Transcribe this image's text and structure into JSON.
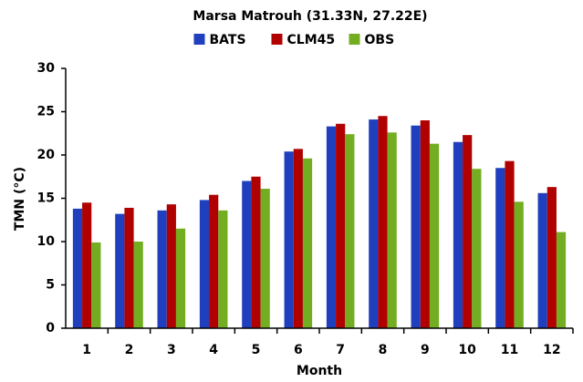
{
  "chart_data": {
    "type": "bar",
    "title": "Marsa Matrouh (31.33N, 27.22E)",
    "x_label": "Month",
    "y_label": "TMN (°C)",
    "categories": [
      "1",
      "2",
      "3",
      "4",
      "5",
      "6",
      "7",
      "8",
      "9",
      "10",
      "11",
      "12"
    ],
    "series": [
      {
        "name": "BATS",
        "color": "#1f3fbf",
        "values": [
          13.8,
          13.2,
          13.6,
          14.8,
          17.0,
          20.4,
          23.3,
          24.1,
          23.4,
          21.5,
          18.5,
          15.6
        ]
      },
      {
        "name": "CLM45",
        "color": "#b00000",
        "values": [
          14.5,
          13.9,
          14.3,
          15.4,
          17.5,
          20.7,
          23.6,
          24.5,
          24.0,
          22.3,
          19.3,
          16.3
        ]
      },
      {
        "name": "OBS",
        "color": "#73ad21",
        "values": [
          9.9,
          10.0,
          11.5,
          13.6,
          16.1,
          19.6,
          22.4,
          22.6,
          21.3,
          18.4,
          14.6,
          11.1
        ]
      }
    ],
    "ylim": [
      0,
      30
    ],
    "yticks": [
      0,
      5,
      10,
      15,
      20,
      25,
      30
    ],
    "grid": false,
    "legend": "top"
  }
}
